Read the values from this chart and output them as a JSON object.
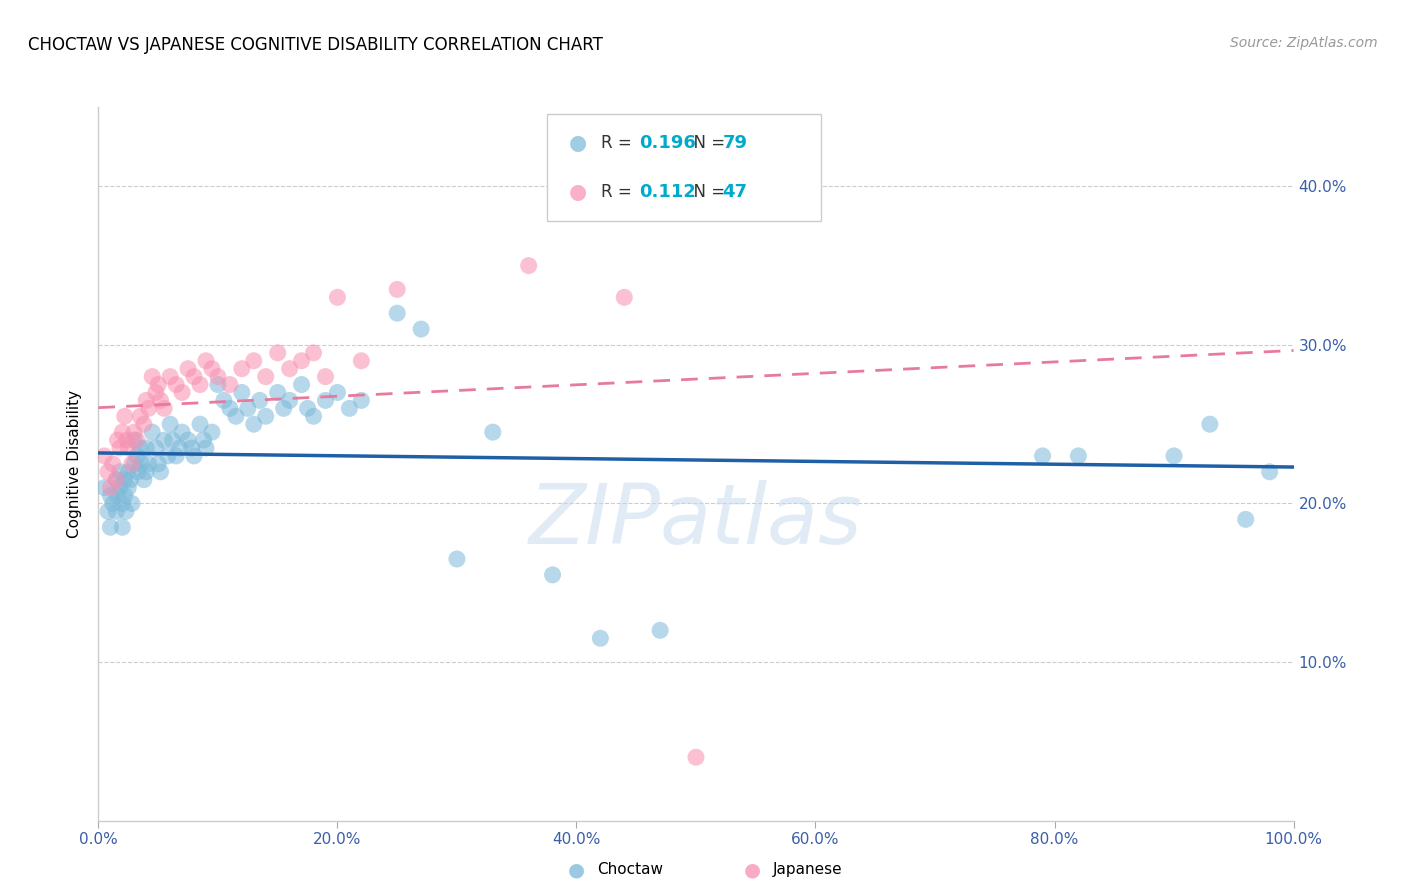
{
  "title": "CHOCTAW VS JAPANESE COGNITIVE DISABILITY CORRELATION CHART",
  "source": "Source: ZipAtlas.com",
  "ylabel": "Cognitive Disability",
  "watermark": "ZIPatlas",
  "xlim": [
    0.0,
    1.0
  ],
  "ylim": [
    0.0,
    0.45
  ],
  "xticks": [
    0.0,
    0.2,
    0.4,
    0.6,
    0.8,
    1.0
  ],
  "xticklabels": [
    "0.0%",
    "20.0%",
    "40.0%",
    "60.0%",
    "80.0%",
    "100.0%"
  ],
  "yticks": [
    0.1,
    0.2,
    0.3,
    0.4
  ],
  "yticklabels": [
    "10.0%",
    "20.0%",
    "30.0%",
    "40.0%"
  ],
  "choctaw_R": 0.196,
  "choctaw_N": 79,
  "japanese_R": 0.112,
  "japanese_N": 47,
  "choctaw_color": "#7ab8d9",
  "japanese_color": "#f98fb0",
  "choctaw_line_color": "#1f5fa6",
  "japanese_line_color": "#e87a9f",
  "choctaw_x": [
    0.005,
    0.008,
    0.01,
    0.01,
    0.012,
    0.015,
    0.015,
    0.016,
    0.018,
    0.018,
    0.02,
    0.02,
    0.022,
    0.022,
    0.023,
    0.025,
    0.025,
    0.027,
    0.028,
    0.03,
    0.03,
    0.032,
    0.033,
    0.035,
    0.036,
    0.038,
    0.04,
    0.04,
    0.042,
    0.045,
    0.048,
    0.05,
    0.052,
    0.055,
    0.058,
    0.06,
    0.062,
    0.065,
    0.068,
    0.07,
    0.075,
    0.078,
    0.08,
    0.085,
    0.088,
    0.09,
    0.095,
    0.1,
    0.105,
    0.11,
    0.115,
    0.12,
    0.125,
    0.13,
    0.135,
    0.14,
    0.15,
    0.155,
    0.16,
    0.17,
    0.175,
    0.18,
    0.19,
    0.2,
    0.21,
    0.22,
    0.25,
    0.27,
    0.3,
    0.33,
    0.38,
    0.42,
    0.47,
    0.79,
    0.82,
    0.9,
    0.93,
    0.96,
    0.98
  ],
  "choctaw_y": [
    0.21,
    0.195,
    0.205,
    0.185,
    0.2,
    0.215,
    0.195,
    0.205,
    0.21,
    0.22,
    0.2,
    0.185,
    0.215,
    0.205,
    0.195,
    0.22,
    0.21,
    0.215,
    0.2,
    0.24,
    0.225,
    0.23,
    0.22,
    0.235,
    0.225,
    0.215,
    0.235,
    0.22,
    0.225,
    0.245,
    0.235,
    0.225,
    0.22,
    0.24,
    0.23,
    0.25,
    0.24,
    0.23,
    0.235,
    0.245,
    0.24,
    0.235,
    0.23,
    0.25,
    0.24,
    0.235,
    0.245,
    0.275,
    0.265,
    0.26,
    0.255,
    0.27,
    0.26,
    0.25,
    0.265,
    0.255,
    0.27,
    0.26,
    0.265,
    0.275,
    0.26,
    0.255,
    0.265,
    0.27,
    0.26,
    0.265,
    0.32,
    0.31,
    0.165,
    0.245,
    0.155,
    0.115,
    0.12,
    0.23,
    0.23,
    0.23,
    0.25,
    0.19,
    0.22
  ],
  "japanese_x": [
    0.005,
    0.008,
    0.01,
    0.012,
    0.015,
    0.016,
    0.018,
    0.02,
    0.022,
    0.024,
    0.025,
    0.028,
    0.03,
    0.032,
    0.035,
    0.038,
    0.04,
    0.042,
    0.045,
    0.048,
    0.05,
    0.052,
    0.055,
    0.06,
    0.065,
    0.07,
    0.075,
    0.08,
    0.085,
    0.09,
    0.095,
    0.1,
    0.11,
    0.12,
    0.13,
    0.14,
    0.15,
    0.16,
    0.17,
    0.18,
    0.19,
    0.2,
    0.22,
    0.25,
    0.36,
    0.44,
    0.5
  ],
  "japanese_y": [
    0.23,
    0.22,
    0.21,
    0.225,
    0.215,
    0.24,
    0.235,
    0.245,
    0.255,
    0.24,
    0.235,
    0.225,
    0.245,
    0.24,
    0.255,
    0.25,
    0.265,
    0.26,
    0.28,
    0.27,
    0.275,
    0.265,
    0.26,
    0.28,
    0.275,
    0.27,
    0.285,
    0.28,
    0.275,
    0.29,
    0.285,
    0.28,
    0.275,
    0.285,
    0.29,
    0.28,
    0.295,
    0.285,
    0.29,
    0.295,
    0.28,
    0.33,
    0.29,
    0.335,
    0.35,
    0.33,
    0.04
  ]
}
